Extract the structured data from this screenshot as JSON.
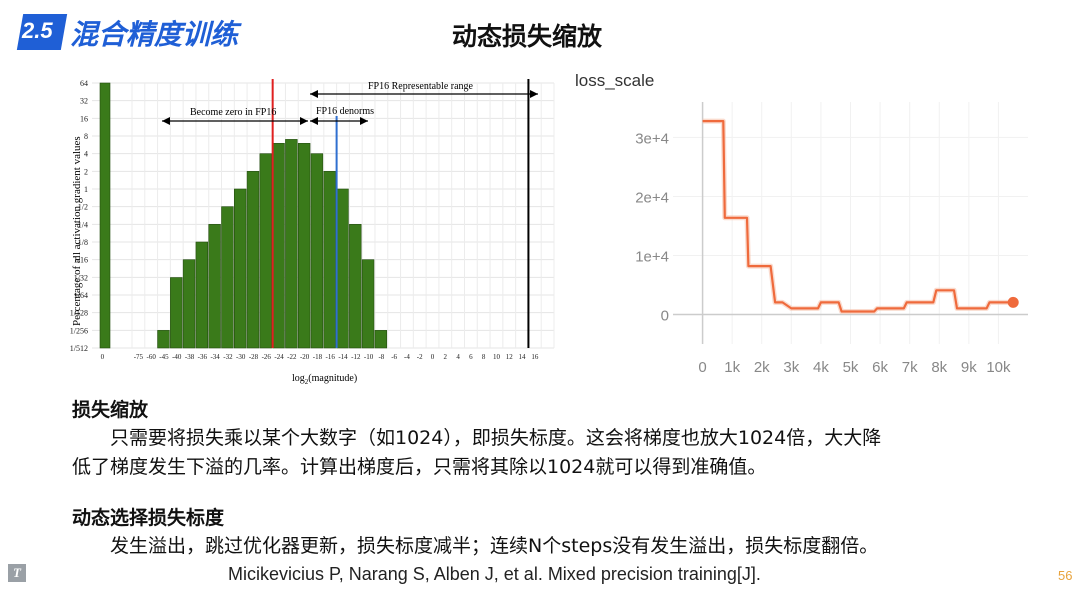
{
  "header": {
    "section_number": "2.5",
    "section_title": "混合精度训练",
    "slide_title": "动态损失缩放"
  },
  "histogram": {
    "y_label": "Percentage of all activation gradient values",
    "x_label": "log",
    "x_label_sub": "2",
    "x_label_tail": "(magnitude)",
    "annotations": {
      "fp16_range": "FP16 Representable range",
      "become_zero": "Become zero in FP16",
      "denorms": "FP16 denorms"
    },
    "colors": {
      "bar": "#3a7a1a",
      "red_line": "#e02020",
      "blue_line": "#2f6fd0",
      "black_line": "#000000"
    }
  },
  "loss_chart": {
    "title": "loss_scale",
    "colors": {
      "line": "#ef6a3c",
      "faint": "#f6c3ae",
      "axis": "#cccccc"
    }
  },
  "chart_data": [
    {
      "type": "bar",
      "title": "",
      "xlabel": "log2(magnitude)",
      "ylabel": "Percentage of all activation gradient values",
      "y_ticks": [
        "64",
        "32",
        "16",
        "8",
        "4",
        "2",
        "1",
        "1/2",
        "1/4",
        "1/8",
        "1/16",
        "1/32",
        "1/64",
        "1/128",
        "1/256",
        "1/512"
      ],
      "categories": [
        "0",
        "-75",
        "-60",
        "-45",
        "-40",
        "-38",
        "-36",
        "-34",
        "-32",
        "-30",
        "-28",
        "-26",
        "-24",
        "-22",
        "-20",
        "-18",
        "-16",
        "-14",
        "-12",
        "-10",
        "-8",
        "-6",
        "-4",
        "-2",
        "0",
        "2",
        "4",
        "6",
        "8",
        "10",
        "12",
        "14",
        "16"
      ],
      "values": [
        64,
        0,
        0,
        0.0039,
        0.031,
        0.0625,
        0.125,
        0.25,
        0.5,
        1,
        2,
        4,
        6,
        7,
        6,
        4,
        2,
        1,
        0.25,
        0.0625,
        0.0039,
        0,
        0,
        0,
        0,
        0,
        0,
        0,
        0,
        0,
        0,
        0,
        0
      ],
      "markers": [
        {
          "label": "red",
          "x": "-24"
        },
        {
          "label": "blue",
          "x": "-14"
        },
        {
          "label": "black",
          "x": "15"
        }
      ]
    },
    {
      "type": "line",
      "title": "loss_scale",
      "x_ticks": [
        "0",
        "1k",
        "2k",
        "3k",
        "4k",
        "5k",
        "6k",
        "7k",
        "8k",
        "9k",
        "10k"
      ],
      "y_ticks": [
        "3e+4",
        "2e+4",
        "1e+4",
        "0"
      ],
      "ylim": [
        -5000,
        36000
      ],
      "xlim": [
        -1000,
        11000
      ],
      "series": [
        {
          "name": "loss_scale",
          "x": [
            0,
            700,
            750,
            1500,
            1550,
            2300,
            2450,
            2700,
            3000,
            3900,
            4000,
            4600,
            4700,
            5800,
            5900,
            6800,
            6900,
            7800,
            7900,
            8500,
            8600,
            9600,
            9700,
            10300,
            10500
          ],
          "values": [
            32768,
            32768,
            16384,
            16384,
            8192,
            8192,
            2048,
            2048,
            1024,
            1024,
            2048,
            2048,
            512,
            512,
            1024,
            1024,
            2048,
            2048,
            4096,
            4096,
            1024,
            1024,
            2048,
            2048,
            2048
          ]
        }
      ]
    }
  ],
  "section1": {
    "title": "损失缩放",
    "line1": "只需要将损失乘以某个大数字（如1024），即损失标度。这会将梯度也放大1024倍，大大降",
    "line2": "低了梯度发生下溢的几率。计算出梯度后，只需将其除以1024就可以得到准确值。"
  },
  "section2": {
    "title": "动态选择损失标度",
    "line1": "发生溢出，跳过优化器更新，损失标度减半；连续N个steps没有发生溢出，损失标度翻倍。"
  },
  "footer": {
    "logo": "T",
    "citation": "Micikevicius P, Narang S, Alben J, et al. Mixed precision training[J].",
    "page_number": "56"
  }
}
